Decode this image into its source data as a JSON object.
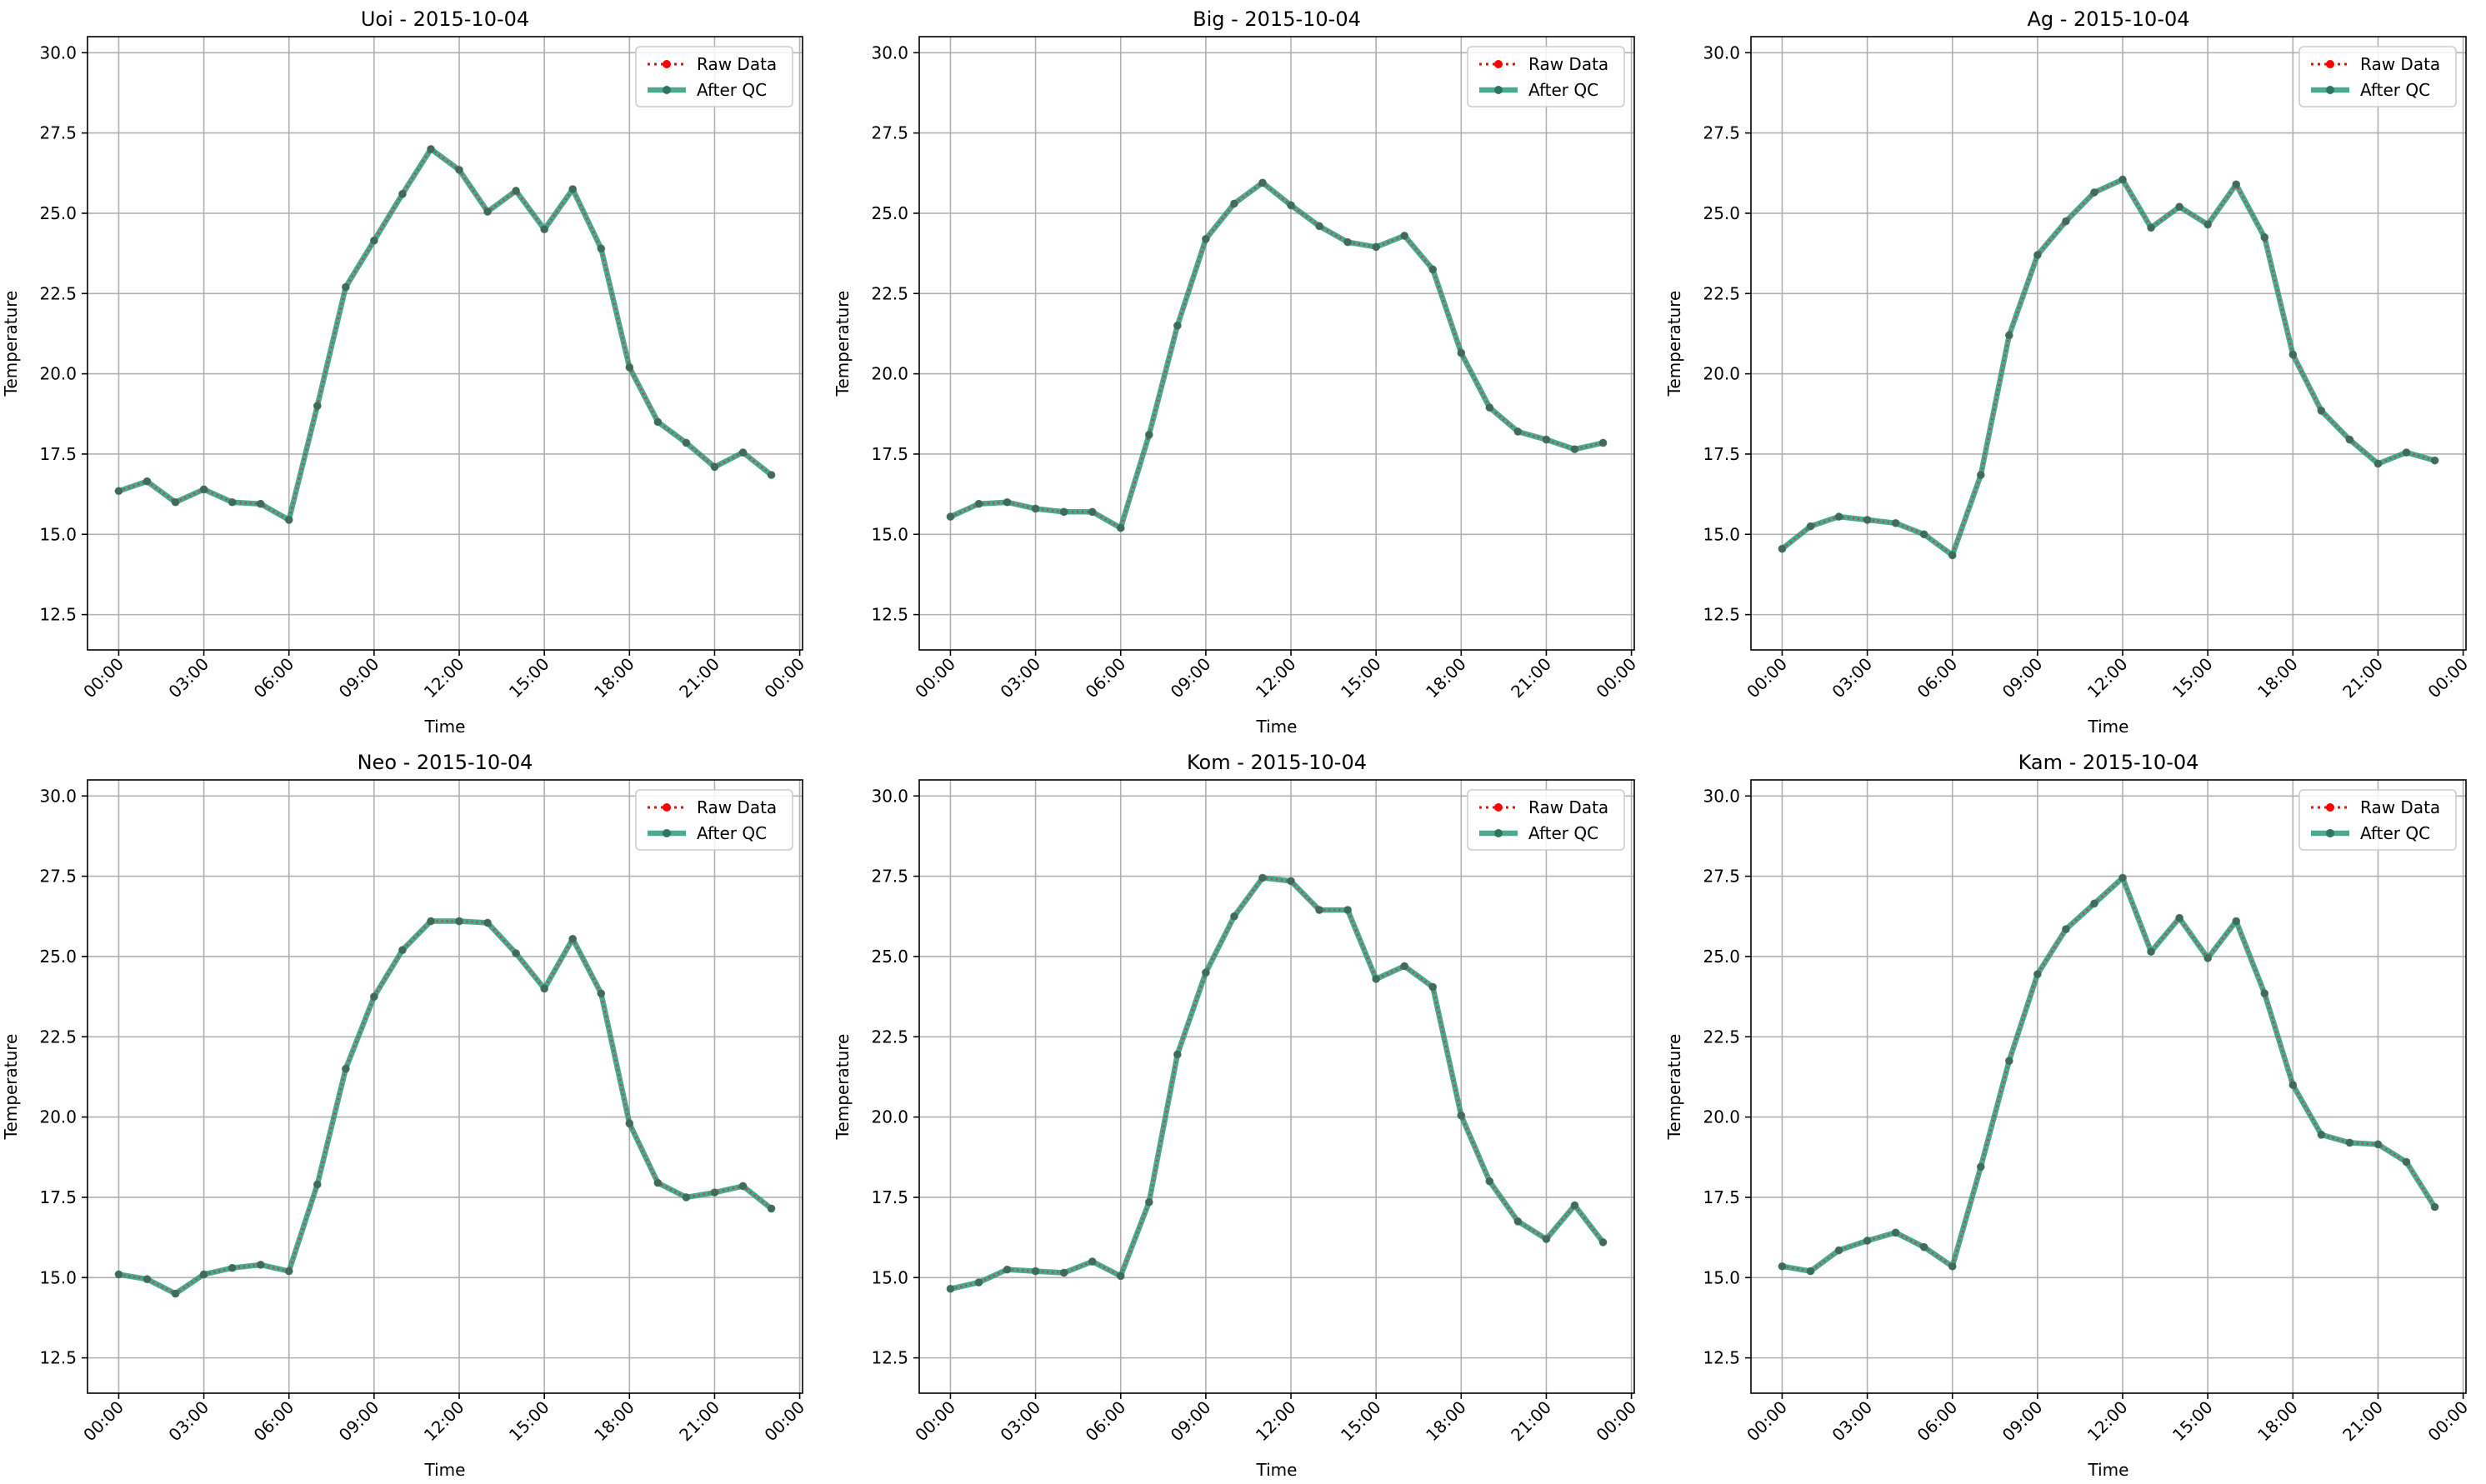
{
  "chart_data": [
    {
      "type": "line",
      "title": "Uoi - 2015-10-04",
      "xlabel": "Time",
      "ylabel": "Temperature",
      "ylim": [
        11.4,
        30.5
      ],
      "xlim": [
        -1.1,
        24.1
      ],
      "yticks": [
        12.5,
        15.0,
        17.5,
        20.0,
        22.5,
        25.0,
        27.5,
        30.0
      ],
      "xticks": [
        0,
        3,
        6,
        9,
        12,
        15,
        18,
        21,
        24
      ],
      "xtick_labels": [
        "00:00",
        "03:00",
        "06:00",
        "09:00",
        "12:00",
        "15:00",
        "18:00",
        "21:00",
        "00:00"
      ],
      "grid": true,
      "legend": "top-right",
      "x": [
        0,
        1,
        2,
        3,
        4,
        5,
        6,
        7,
        8,
        9,
        10,
        11,
        12,
        13,
        14,
        15,
        16,
        17,
        18,
        19,
        20,
        21,
        22,
        23
      ],
      "series": [
        {
          "name": "Raw Data",
          "color": "#ff0000",
          "style": "dotted",
          "values": [
            16.35,
            16.65,
            16.0,
            16.4,
            16.0,
            15.95,
            15.45,
            19.0,
            22.7,
            24.15,
            25.6,
            27.0,
            26.35,
            25.05,
            25.7,
            24.5,
            25.75,
            23.9,
            20.2,
            18.5,
            17.85,
            17.1,
            17.55,
            16.85
          ]
        },
        {
          "name": "After QC",
          "color": "#2a9a7a",
          "style": "solid",
          "values": [
            16.35,
            16.65,
            16.0,
            16.4,
            16.0,
            15.95,
            15.45,
            19.0,
            22.7,
            24.15,
            25.6,
            27.0,
            26.35,
            25.05,
            25.7,
            24.5,
            25.75,
            23.9,
            20.2,
            18.5,
            17.85,
            17.1,
            17.55,
            16.85
          ]
        }
      ]
    },
    {
      "type": "line",
      "title": "Big - 2015-10-04",
      "xlabel": "Time",
      "ylabel": "Temperature",
      "ylim": [
        11.4,
        30.5
      ],
      "xlim": [
        -1.1,
        24.1
      ],
      "yticks": [
        12.5,
        15.0,
        17.5,
        20.0,
        22.5,
        25.0,
        27.5,
        30.0
      ],
      "xticks": [
        0,
        3,
        6,
        9,
        12,
        15,
        18,
        21,
        24
      ],
      "xtick_labels": [
        "00:00",
        "03:00",
        "06:00",
        "09:00",
        "12:00",
        "15:00",
        "18:00",
        "21:00",
        "00:00"
      ],
      "grid": true,
      "legend": "top-right",
      "x": [
        0,
        1,
        2,
        3,
        4,
        5,
        6,
        7,
        8,
        9,
        10,
        11,
        12,
        13,
        14,
        15,
        16,
        17,
        18,
        19,
        20,
        21,
        22,
        23
      ],
      "series": [
        {
          "name": "Raw Data",
          "color": "#ff0000",
          "style": "dotted",
          "values": [
            15.55,
            15.95,
            16.0,
            15.8,
            15.7,
            15.7,
            15.2,
            18.1,
            21.5,
            24.2,
            25.3,
            25.95,
            25.25,
            24.6,
            24.1,
            23.95,
            24.3,
            23.25,
            20.65,
            18.95,
            18.2,
            17.95,
            17.65,
            17.85
          ]
        },
        {
          "name": "After QC",
          "color": "#2a9a7a",
          "style": "solid",
          "values": [
            15.55,
            15.95,
            16.0,
            15.8,
            15.7,
            15.7,
            15.2,
            18.1,
            21.5,
            24.2,
            25.3,
            25.95,
            25.25,
            24.6,
            24.1,
            23.95,
            24.3,
            23.25,
            20.65,
            18.95,
            18.2,
            17.95,
            17.65,
            17.85
          ]
        }
      ]
    },
    {
      "type": "line",
      "title": "Ag - 2015-10-04",
      "xlabel": "Time",
      "ylabel": "Temperature",
      "ylim": [
        11.4,
        30.5
      ],
      "xlim": [
        -1.1,
        24.1
      ],
      "yticks": [
        12.5,
        15.0,
        17.5,
        20.0,
        22.5,
        25.0,
        27.5,
        30.0
      ],
      "xticks": [
        0,
        3,
        6,
        9,
        12,
        15,
        18,
        21,
        24
      ],
      "xtick_labels": [
        "00:00",
        "03:00",
        "06:00",
        "09:00",
        "12:00",
        "15:00",
        "18:00",
        "21:00",
        "00:00"
      ],
      "grid": true,
      "legend": "top-right",
      "x": [
        0,
        1,
        2,
        3,
        4,
        5,
        6,
        7,
        8,
        9,
        10,
        11,
        12,
        13,
        14,
        15,
        16,
        17,
        18,
        19,
        20,
        21,
        22,
        23
      ],
      "series": [
        {
          "name": "Raw Data",
          "color": "#ff0000",
          "style": "dotted",
          "values": [
            14.55,
            15.25,
            15.55,
            15.45,
            15.35,
            15.0,
            14.35,
            16.85,
            21.2,
            23.7,
            24.75,
            25.65,
            26.05,
            24.55,
            25.2,
            24.65,
            25.9,
            24.25,
            20.6,
            18.85,
            17.95,
            17.2,
            17.55,
            17.3
          ]
        },
        {
          "name": "After QC",
          "color": "#2a9a7a",
          "style": "solid",
          "values": [
            14.55,
            15.25,
            15.55,
            15.45,
            15.35,
            15.0,
            14.35,
            16.85,
            21.2,
            23.7,
            24.75,
            25.65,
            26.05,
            24.55,
            25.2,
            24.65,
            25.9,
            24.25,
            20.6,
            18.85,
            17.95,
            17.2,
            17.55,
            17.3
          ]
        }
      ]
    },
    {
      "type": "line",
      "title": "Neo - 2015-10-04",
      "xlabel": "Time",
      "ylabel": "Temperature",
      "ylim": [
        11.4,
        30.5
      ],
      "xlim": [
        -1.1,
        24.1
      ],
      "yticks": [
        12.5,
        15.0,
        17.5,
        20.0,
        22.5,
        25.0,
        27.5,
        30.0
      ],
      "xticks": [
        0,
        3,
        6,
        9,
        12,
        15,
        18,
        21,
        24
      ],
      "xtick_labels": [
        "00:00",
        "03:00",
        "06:00",
        "09:00",
        "12:00",
        "15:00",
        "18:00",
        "21:00",
        "00:00"
      ],
      "grid": true,
      "legend": "top-right",
      "x": [
        0,
        1,
        2,
        3,
        4,
        5,
        6,
        7,
        8,
        9,
        10,
        11,
        12,
        13,
        14,
        15,
        16,
        17,
        18,
        19,
        20,
        21,
        22,
        23
      ],
      "series": [
        {
          "name": "Raw Data",
          "color": "#ff0000",
          "style": "dotted",
          "values": [
            15.1,
            14.95,
            14.5,
            15.1,
            15.3,
            15.4,
            15.2,
            17.9,
            21.5,
            23.75,
            25.2,
            26.1,
            26.1,
            26.05,
            25.1,
            24.0,
            25.55,
            23.85,
            19.8,
            17.95,
            17.5,
            17.65,
            17.85,
            17.15
          ]
        },
        {
          "name": "After QC",
          "color": "#2a9a7a",
          "style": "solid",
          "values": [
            15.1,
            14.95,
            14.5,
            15.1,
            15.3,
            15.4,
            15.2,
            17.9,
            21.5,
            23.75,
            25.2,
            26.1,
            26.1,
            26.05,
            25.1,
            24.0,
            25.55,
            23.85,
            19.8,
            17.95,
            17.5,
            17.65,
            17.85,
            17.15
          ]
        }
      ]
    },
    {
      "type": "line",
      "title": "Kom - 2015-10-04",
      "xlabel": "Time",
      "ylabel": "Temperature",
      "ylim": [
        11.4,
        30.5
      ],
      "xlim": [
        -1.1,
        24.1
      ],
      "yticks": [
        12.5,
        15.0,
        17.5,
        20.0,
        22.5,
        25.0,
        27.5,
        30.0
      ],
      "xticks": [
        0,
        3,
        6,
        9,
        12,
        15,
        18,
        21,
        24
      ],
      "xtick_labels": [
        "00:00",
        "03:00",
        "06:00",
        "09:00",
        "12:00",
        "15:00",
        "18:00",
        "21:00",
        "00:00"
      ],
      "grid": true,
      "legend": "top-right",
      "x": [
        0,
        1,
        2,
        3,
        4,
        5,
        6,
        7,
        8,
        9,
        10,
        11,
        12,
        13,
        14,
        15,
        16,
        17,
        18,
        19,
        20,
        21,
        22,
        23
      ],
      "series": [
        {
          "name": "Raw Data",
          "color": "#ff0000",
          "style": "dotted",
          "values": [
            14.65,
            14.85,
            15.25,
            15.2,
            15.15,
            15.5,
            15.05,
            17.35,
            21.95,
            24.5,
            26.25,
            27.45,
            27.35,
            26.45,
            26.45,
            24.3,
            24.7,
            24.05,
            20.05,
            18.0,
            16.75,
            16.2,
            17.25,
            16.1
          ]
        },
        {
          "name": "After QC",
          "color": "#2a9a7a",
          "style": "solid",
          "values": [
            14.65,
            14.85,
            15.25,
            15.2,
            15.15,
            15.5,
            15.05,
            17.35,
            21.95,
            24.5,
            26.25,
            27.45,
            27.35,
            26.45,
            26.45,
            24.3,
            24.7,
            24.05,
            20.05,
            18.0,
            16.75,
            16.2,
            17.25,
            16.1
          ]
        }
      ]
    },
    {
      "type": "line",
      "title": "Kam - 2015-10-04",
      "xlabel": "Time",
      "ylabel": "Temperature",
      "ylim": [
        11.4,
        30.5
      ],
      "xlim": [
        -1.1,
        24.1
      ],
      "yticks": [
        12.5,
        15.0,
        17.5,
        20.0,
        22.5,
        25.0,
        27.5,
        30.0
      ],
      "xticks": [
        0,
        3,
        6,
        9,
        12,
        15,
        18,
        21,
        24
      ],
      "xtick_labels": [
        "00:00",
        "03:00",
        "06:00",
        "09:00",
        "12:00",
        "15:00",
        "18:00",
        "21:00",
        "00:00"
      ],
      "grid": true,
      "legend": "top-right",
      "x": [
        0,
        1,
        2,
        3,
        4,
        5,
        6,
        7,
        8,
        9,
        10,
        11,
        12,
        13,
        14,
        15,
        16,
        17,
        18,
        19,
        20,
        21,
        22,
        23
      ],
      "series": [
        {
          "name": "Raw Data",
          "color": "#ff0000",
          "style": "dotted",
          "values": [
            15.35,
            15.2,
            15.85,
            16.15,
            16.4,
            15.95,
            15.35,
            18.45,
            21.75,
            24.45,
            25.85,
            26.65,
            27.45,
            25.15,
            26.2,
            24.95,
            26.1,
            23.85,
            21.0,
            19.45,
            19.2,
            19.15,
            18.6,
            17.2
          ]
        },
        {
          "name": "After QC",
          "color": "#2a9a7a",
          "style": "solid",
          "values": [
            15.35,
            15.2,
            15.85,
            16.15,
            16.4,
            15.95,
            15.35,
            18.45,
            21.75,
            24.45,
            25.85,
            26.65,
            27.45,
            25.15,
            26.2,
            24.95,
            26.1,
            23.85,
            21.0,
            19.45,
            19.2,
            19.15,
            18.6,
            17.2
          ]
        }
      ]
    }
  ]
}
